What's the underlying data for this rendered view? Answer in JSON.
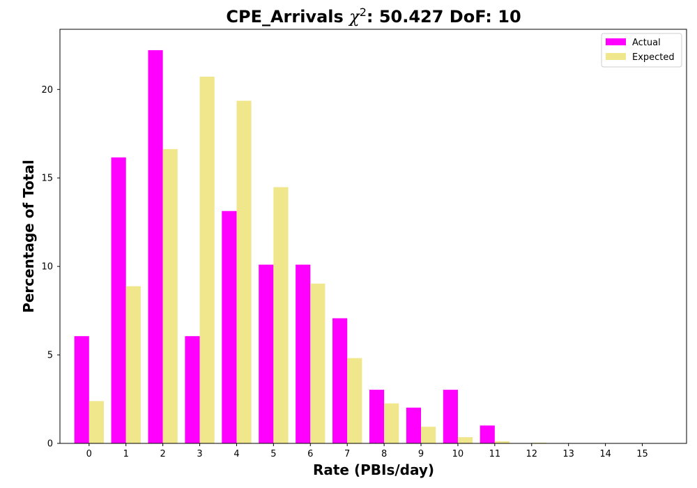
{
  "chart_data": {
    "type": "bar",
    "title_prefix": "CPE_Arrivals ",
    "title_chi": "χ",
    "title_sup": "2",
    "title_suffix": ": 50.427 DoF: 10",
    "xlabel": "Rate (PBIs/day)",
    "ylabel": "Percentage of Total",
    "categories": [
      "0",
      "1",
      "2",
      "3",
      "4",
      "5",
      "6",
      "7",
      "8",
      "9",
      "10",
      "11",
      "12",
      "13",
      "14",
      "15"
    ],
    "ylim": [
      0,
      23.4
    ],
    "yticks": [
      0,
      5,
      10,
      15,
      20
    ],
    "legend_position": "top-right",
    "series": [
      {
        "name": "Actual",
        "color": "#ff00ff",
        "values": [
          6.06,
          16.16,
          22.22,
          6.06,
          13.13,
          10.1,
          10.1,
          7.07,
          3.03,
          2.02,
          3.03,
          1.01,
          0,
          0,
          0,
          0
        ]
      },
      {
        "name": "Expected",
        "color": "#f0e68c",
        "values": [
          2.39,
          8.88,
          16.63,
          20.72,
          19.36,
          14.48,
          9.03,
          4.82,
          2.26,
          0.94,
          0.35,
          0.12,
          0.04,
          0.01,
          0.0,
          0.0
        ]
      }
    ]
  }
}
